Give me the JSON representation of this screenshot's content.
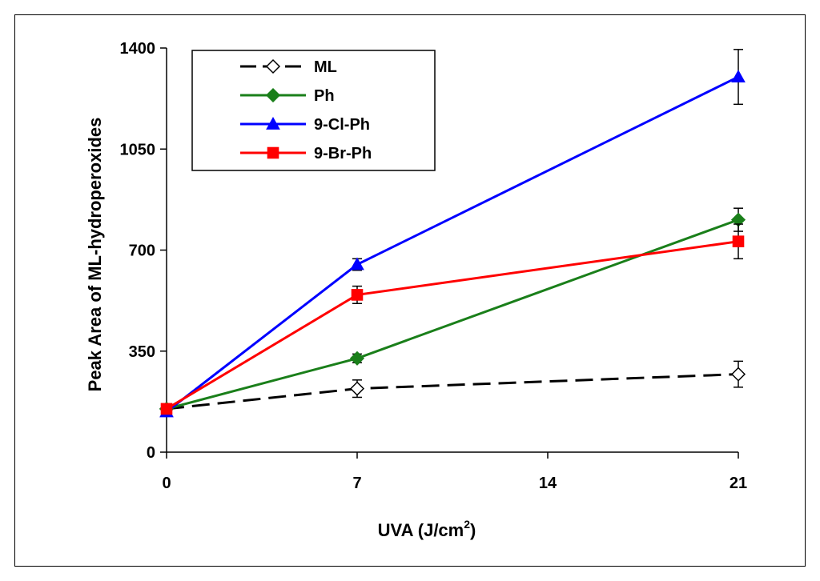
{
  "chart_data": {
    "type": "line",
    "title": "",
    "xlabel": "UVA (J/cm",
    "xlabel_sup": "2",
    "xlabel_close": ")",
    "ylabel": "Peak Area of ML-hydroperoxides",
    "xlim": [
      0,
      21
    ],
    "ylim": [
      0,
      1400
    ],
    "x_ticks": [
      0,
      7,
      14,
      21
    ],
    "x_tick_labels": [
      "0",
      "7",
      "14",
      "21"
    ],
    "y_ticks": [
      0,
      350,
      700,
      1050,
      1400
    ],
    "y_tick_labels": [
      "0",
      "350",
      "700",
      "1050",
      "1400"
    ],
    "grid": false,
    "legend_position": "top-left",
    "series": [
      {
        "name": "ML",
        "color": "#000000",
        "dash": true,
        "marker": "diamond-open",
        "x": [
          0,
          7,
          21
        ],
        "values": [
          150,
          220,
          270
        ],
        "errors": [
          10,
          30,
          45
        ]
      },
      {
        "name": "Ph",
        "color": "#1a7f1a",
        "dash": false,
        "marker": "diamond",
        "x": [
          0,
          7,
          21
        ],
        "values": [
          150,
          325,
          805
        ],
        "errors": [
          10,
          15,
          40
        ]
      },
      {
        "name": "9-Cl-Ph",
        "color": "#0000ff",
        "dash": false,
        "marker": "triangle",
        "x": [
          0,
          7,
          21
        ],
        "values": [
          140,
          650,
          1300
        ],
        "errors": [
          10,
          20,
          95
        ]
      },
      {
        "name": "9-Br-Ph",
        "color": "#ff0000",
        "dash": false,
        "marker": "square",
        "x": [
          0,
          7,
          21
        ],
        "values": [
          150,
          545,
          730
        ],
        "errors": [
          10,
          30,
          60
        ]
      }
    ]
  }
}
